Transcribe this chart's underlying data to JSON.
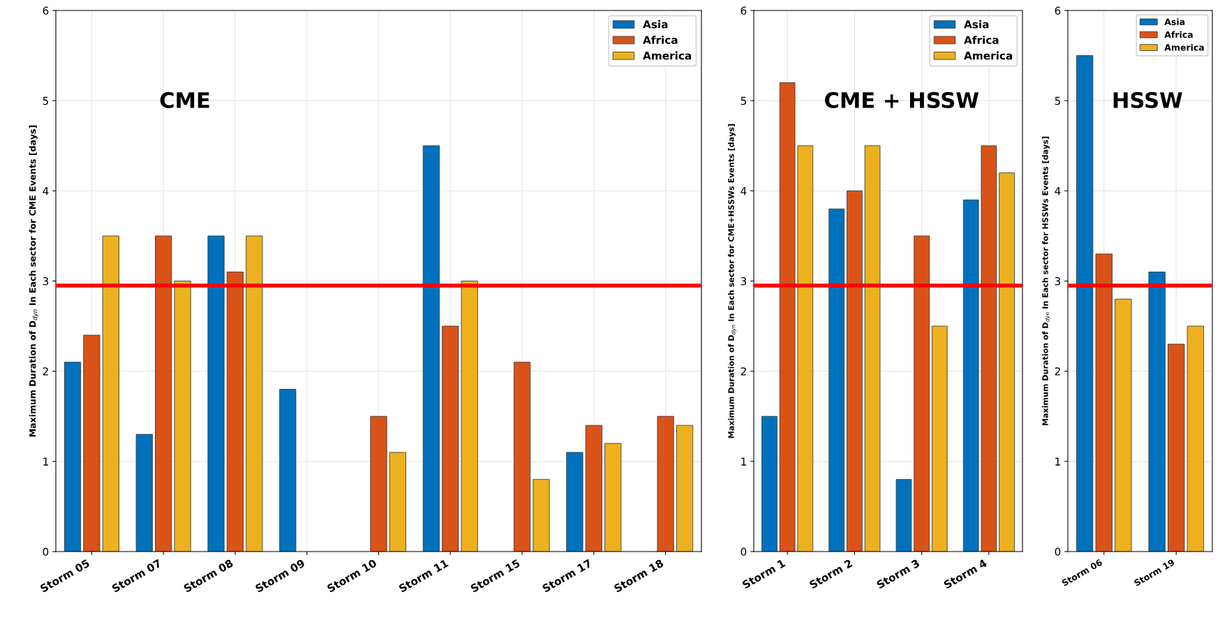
{
  "chart_data": [
    {
      "type": "bar",
      "categories": [
        "Storm 05",
        "Storm 07",
        "Storm 08",
        "Storm 09",
        "Storm 10",
        "Storm 11",
        "Storm 15",
        "Storm 17",
        "Storm 18"
      ],
      "ylabel": "Maximum Duration of D$_{dyn}$ In Each sector for CME Events [days]",
      "ylim": [
        0,
        6
      ],
      "yticks": [
        0,
        1,
        2,
        3,
        4,
        5,
        6
      ],
      "grid": true,
      "legend": "top right",
      "annotations": [
        "CME"
      ],
      "series": [
        {
          "name": "Asia",
          "color": "#0072bd",
          "values": [
            2.1,
            1.3,
            3.5,
            1.8,
            null,
            4.5,
            null,
            1.1,
            null
          ]
        },
        {
          "name": "Africa",
          "color": "#d95319",
          "values": [
            2.4,
            3.5,
            3.1,
            null,
            1.5,
            2.5,
            2.1,
            1.4,
            1.5
          ]
        },
        {
          "name": "America",
          "color": "#edb120",
          "values": [
            3.5,
            3.0,
            3.5,
            null,
            1.1,
            3.0,
            0.8,
            1.2,
            1.4
          ]
        }
      ],
      "ref_lines": [
        {
          "axis": "y",
          "value": 2.95,
          "color": "#ff0000"
        }
      ]
    },
    {
      "type": "bar",
      "categories": [
        "Storm 1",
        "Storm 2",
        "Storm 3",
        "Storm 4"
      ],
      "ylabel": "Maximum Duration of D$_{dyn}$ In Each sector for CME+HSSWs Events [days]",
      "ylim": [
        0,
        6
      ],
      "yticks": [
        0,
        1,
        2,
        3,
        4,
        5,
        6
      ],
      "grid": true,
      "legend": "top right",
      "annotations": [
        "CME + HSSW"
      ],
      "series": [
        {
          "name": "Asia",
          "color": "#0072bd",
          "values": [
            1.5,
            3.8,
            0.8,
            3.9
          ]
        },
        {
          "name": "Africa",
          "color": "#d95319",
          "values": [
            5.2,
            4.0,
            3.5,
            4.5
          ]
        },
        {
          "name": "America",
          "color": "#edb120",
          "values": [
            4.5,
            4.5,
            2.5,
            4.2
          ]
        }
      ],
      "ref_lines": [
        {
          "axis": "y",
          "value": 2.95,
          "color": "#ff0000"
        }
      ]
    },
    {
      "type": "bar",
      "categories": [
        "Storm 06",
        "Storm 19"
      ],
      "ylabel": "Maximum Duration of D$_{dyn}$ In Each sector for HSSWs Events [days]",
      "ylim": [
        0,
        6
      ],
      "yticks": [
        0,
        1,
        2,
        3,
        4,
        5,
        6
      ],
      "grid": true,
      "legend": "top right",
      "annotations": [
        "HSSW"
      ],
      "series": [
        {
          "name": "Asia",
          "color": "#0072bd",
          "values": [
            5.5,
            3.1
          ]
        },
        {
          "name": "Africa",
          "color": "#d95319",
          "values": [
            3.3,
            2.3
          ]
        },
        {
          "name": "America",
          "color": "#edb120",
          "values": [
            2.8,
            2.5
          ]
        }
      ],
      "ref_lines": [
        {
          "axis": "y",
          "value": 2.95,
          "color": "#ff0000"
        }
      ]
    }
  ]
}
